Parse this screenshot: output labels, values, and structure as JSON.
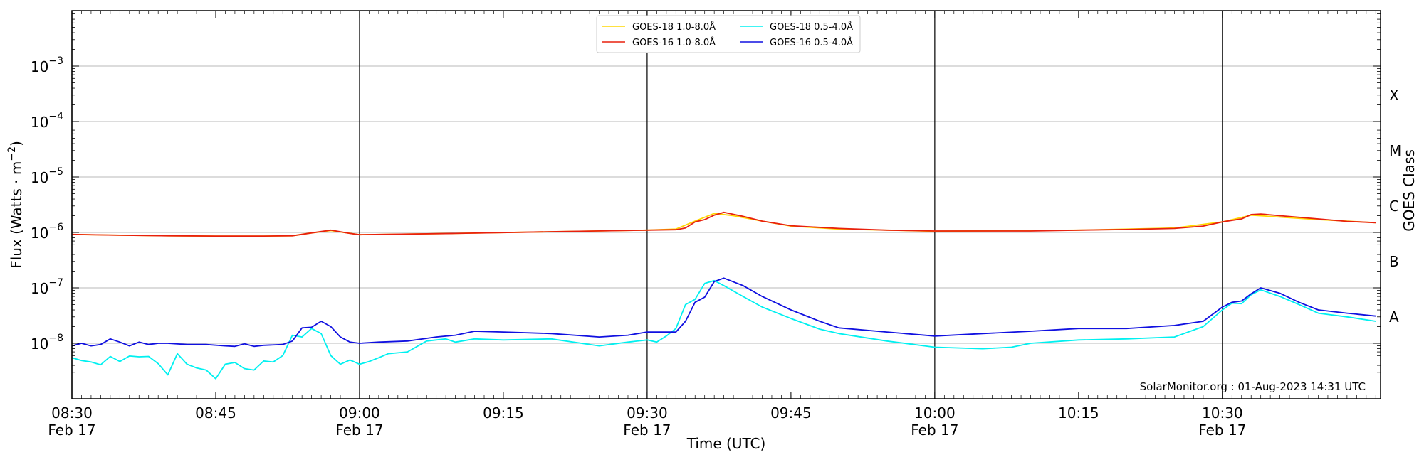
{
  "chart_data": {
    "type": "line",
    "ylabel": "Flux (Watts · m⁻²)",
    "xlabel": "Time (UTC)",
    "right_label": "GOES Class",
    "y_scale": "log",
    "ylim": [
      1e-09,
      0.01
    ],
    "xlim": [
      "2023-02-17T08:30:00Z",
      "2023-02-17T10:46:30Z"
    ],
    "y_ticks": [
      {
        "value": 1e-08,
        "base": "10",
        "exp": "−8"
      },
      {
        "value": 1e-07,
        "base": "10",
        "exp": "−7"
      },
      {
        "value": 1e-06,
        "base": "10",
        "exp": "−6"
      },
      {
        "value": 1e-05,
        "base": "10",
        "exp": "−5"
      },
      {
        "value": 0.0001,
        "base": "10",
        "exp": "−4"
      },
      {
        "value": 0.001,
        "base": "10",
        "exp": "−3"
      }
    ],
    "x_ticks": [
      {
        "time": "08:30",
        "label": "08:30",
        "sub": "Feb 17"
      },
      {
        "time": "08:45",
        "label": "08:45",
        "sub": ""
      },
      {
        "time": "09:00",
        "label": "09:00",
        "sub": "Feb 17"
      },
      {
        "time": "09:15",
        "label": "09:15",
        "sub": ""
      },
      {
        "time": "09:30",
        "label": "09:30",
        "sub": "Feb 17"
      },
      {
        "time": "09:45",
        "label": "09:45",
        "sub": ""
      },
      {
        "time": "10:00",
        "label": "10:00",
        "sub": "Feb 17"
      },
      {
        "time": "10:15",
        "label": "10:15",
        "sub": ""
      },
      {
        "time": "10:30",
        "label": "10:30",
        "sub": "Feb 17"
      }
    ],
    "vertical_lines": [
      "08:30",
      "09:00",
      "09:30",
      "10:00",
      "10:30"
    ],
    "goes_classes": [
      {
        "label": "A",
        "value": 3e-08
      },
      {
        "label": "B",
        "value": 3e-07
      },
      {
        "label": "C",
        "value": 3e-06
      },
      {
        "label": "M",
        "value": 3e-05
      },
      {
        "label": "X",
        "value": 0.0003
      }
    ],
    "grid": "horizontal",
    "legend_position": "top-center",
    "series": [
      {
        "name": "GOES-18 1.0-8.0Å",
        "color": "#ffd700",
        "x": [
          "08:30",
          "08:35",
          "08:40",
          "08:45",
          "08:50",
          "08:53",
          "08:55",
          "08:57",
          "09:00",
          "09:10",
          "09:20",
          "09:30",
          "09:33",
          "09:35",
          "09:37",
          "09:39",
          "09:42",
          "09:45",
          "09:50",
          "10:00",
          "10:15",
          "10:25",
          "10:30",
          "10:33",
          "10:40",
          "10:46"
        ],
        "y": [
          9.2e-07,
          8.9e-07,
          8.7e-07,
          8.6e-07,
          8.6e-07,
          8.7e-07,
          9.8e-07,
          1.08e-06,
          9.1e-07,
          9.6e-07,
          1.03e-06,
          1.1e-06,
          1.15e-06,
          1.6e-06,
          2.2e-06,
          2e-06,
          1.6e-06,
          1.3e-06,
          1.15e-06,
          1.05e-06,
          1.1e-06,
          1.2e-06,
          1.55e-06,
          2.05e-06,
          1.7e-06,
          1.5e-06
        ]
      },
      {
        "name": "GOES-16 1.0-8.0Å",
        "color": "#e8200e",
        "x": [
          "08:30",
          "08:35",
          "08:40",
          "08:45",
          "08:50",
          "08:53",
          "08:55",
          "08:57",
          "08:59",
          "09:00",
          "09:10",
          "09:20",
          "09:30",
          "09:33",
          "09:34",
          "09:35",
          "09:36",
          "09:37",
          "09:38",
          "09:40",
          "09:42",
          "09:45",
          "09:50",
          "09:55",
          "10:00",
          "10:10",
          "10:15",
          "10:20",
          "10:25",
          "10:28",
          "10:30",
          "10:32",
          "10:33",
          "10:34",
          "10:36",
          "10:40",
          "10:43",
          "10:46"
        ],
        "y": [
          9.2e-07,
          8.9e-07,
          8.7e-07,
          8.6e-07,
          8.6e-07,
          8.7e-07,
          9.8e-07,
          1.1e-06,
          9.6e-07,
          9.1e-07,
          9.6e-07,
          1.03e-06,
          1.1e-06,
          1.12e-06,
          1.2e-06,
          1.55e-06,
          1.7e-06,
          2.05e-06,
          2.3e-06,
          1.95e-06,
          1.6e-06,
          1.32e-06,
          1.18e-06,
          1.1e-06,
          1.06e-06,
          1.06e-06,
          1.1e-06,
          1.13e-06,
          1.18e-06,
          1.3e-06,
          1.55e-06,
          1.75e-06,
          2.1e-06,
          2.15e-06,
          2e-06,
          1.75e-06,
          1.58e-06,
          1.5e-06
        ]
      },
      {
        "name": "GOES-18 0.5-4.0Å",
        "color": "#00f0f0",
        "x": [
          "08:30",
          "08:31",
          "08:32",
          "08:33",
          "08:34",
          "08:35",
          "08:36",
          "08:37",
          "08:38",
          "08:39",
          "08:40",
          "08:41",
          "08:42",
          "08:43",
          "08:44",
          "08:45",
          "08:46",
          "08:47",
          "08:48",
          "08:49",
          "08:50",
          "08:51",
          "08:52",
          "08:53",
          "08:54",
          "08:55",
          "08:56",
          "08:57",
          "08:58",
          "08:59",
          "09:00",
          "09:01",
          "09:02",
          "09:03",
          "09:05",
          "09:07",
          "09:09",
          "09:10",
          "09:12",
          "09:15",
          "09:20",
          "09:25",
          "09:28",
          "09:30",
          "09:31",
          "09:32",
          "09:33",
          "09:34",
          "09:35",
          "09:36",
          "09:37",
          "09:38",
          "09:40",
          "09:42",
          "09:45",
          "09:48",
          "09:50",
          "09:55",
          "10:00",
          "10:05",
          "10:08",
          "10:10",
          "10:15",
          "10:20",
          "10:25",
          "10:28",
          "10:30",
          "10:31",
          "10:32",
          "10:33",
          "10:34",
          "10:36",
          "10:38",
          "10:40",
          "10:43",
          "10:46"
        ],
        "y": [
          5.5e-09,
          4.9e-09,
          4.6e-09,
          4.1e-09,
          5.8e-09,
          4.7e-09,
          5.9e-09,
          5.7e-09,
          5.8e-09,
          4.3e-09,
          2.7e-09,
          6.5e-09,
          4.2e-09,
          3.6e-09,
          3.3e-09,
          2.3e-09,
          4.2e-09,
          4.5e-09,
          3.5e-09,
          3.3e-09,
          4.8e-09,
          4.6e-09,
          6e-09,
          1.4e-08,
          1.3e-08,
          1.85e-08,
          1.5e-08,
          6e-09,
          4.2e-09,
          5e-09,
          4.2e-09,
          4.7e-09,
          5.5e-09,
          6.5e-09,
          7e-09,
          1.1e-08,
          1.2e-08,
          1.05e-08,
          1.2e-08,
          1.15e-08,
          1.2e-08,
          9e-09,
          1.05e-08,
          1.15e-08,
          1.05e-08,
          1.35e-08,
          1.85e-08,
          5e-08,
          6.2e-08,
          1.2e-07,
          1.35e-07,
          1.1e-07,
          7e-08,
          4.5e-08,
          2.8e-08,
          1.8e-08,
          1.5e-08,
          1.1e-08,
          8.5e-09,
          8e-09,
          8.5e-09,
          1e-08,
          1.15e-08,
          1.2e-08,
          1.3e-08,
          2e-08,
          4e-08,
          5.3e-08,
          5.2e-08,
          7.5e-08,
          9.2e-08,
          7e-08,
          5e-08,
          3.5e-08,
          3e-08,
          2.5e-08
        ]
      },
      {
        "name": "GOES-16 0.5-4.0Å",
        "color": "#1010e0",
        "x": [
          "08:30",
          "08:31",
          "08:32",
          "08:33",
          "08:34",
          "08:35",
          "08:36",
          "08:37",
          "08:38",
          "08:39",
          "08:40",
          "08:42",
          "08:44",
          "08:46",
          "08:47",
          "08:48",
          "08:49",
          "08:50",
          "08:52",
          "08:53",
          "08:54",
          "08:55",
          "08:56",
          "08:57",
          "08:58",
          "08:59",
          "09:00",
          "09:02",
          "09:05",
          "09:08",
          "09:10",
          "09:12",
          "09:15",
          "09:20",
          "09:25",
          "09:28",
          "09:30",
          "09:33",
          "09:34",
          "09:35",
          "09:36",
          "09:37",
          "09:38",
          "09:40",
          "09:42",
          "09:45",
          "09:48",
          "09:50",
          "09:55",
          "10:00",
          "10:05",
          "10:10",
          "10:15",
          "10:20",
          "10:25",
          "10:28",
          "10:30",
          "10:31",
          "10:32",
          "10:33",
          "10:34",
          "10:36",
          "10:38",
          "10:40",
          "10:43",
          "10:46"
        ],
        "y": [
          9e-09,
          1e-08,
          9e-09,
          9.5e-09,
          1.2e-08,
          1.05e-08,
          9e-09,
          1.05e-08,
          9.5e-09,
          1e-08,
          1e-08,
          9.5e-09,
          9.5e-09,
          9e-09,
          8.8e-09,
          9.8e-09,
          8.8e-09,
          9.2e-09,
          9.5e-09,
          1.1e-08,
          1.9e-08,
          1.95e-08,
          2.5e-08,
          2e-08,
          1.3e-08,
          1.05e-08,
          1e-08,
          1.05e-08,
          1.1e-08,
          1.3e-08,
          1.4e-08,
          1.65e-08,
          1.6e-08,
          1.5e-08,
          1.3e-08,
          1.4e-08,
          1.6e-08,
          1.6e-08,
          2.5e-08,
          5.5e-08,
          6.8e-08,
          1.3e-07,
          1.5e-07,
          1.1e-07,
          7e-08,
          4e-08,
          2.5e-08,
          1.9e-08,
          1.6e-08,
          1.35e-08,
          1.5e-08,
          1.65e-08,
          1.85e-08,
          1.85e-08,
          2.1e-08,
          2.5e-08,
          4.5e-08,
          5.5e-08,
          5.8e-08,
          7.8e-08,
          1e-07,
          8e-08,
          5.5e-08,
          4e-08,
          3.5e-08,
          3.1e-08
        ]
      }
    ]
  },
  "footer": {
    "credit": "SolarMonitor.org : 01-Aug-2023 14:31 UTC"
  }
}
